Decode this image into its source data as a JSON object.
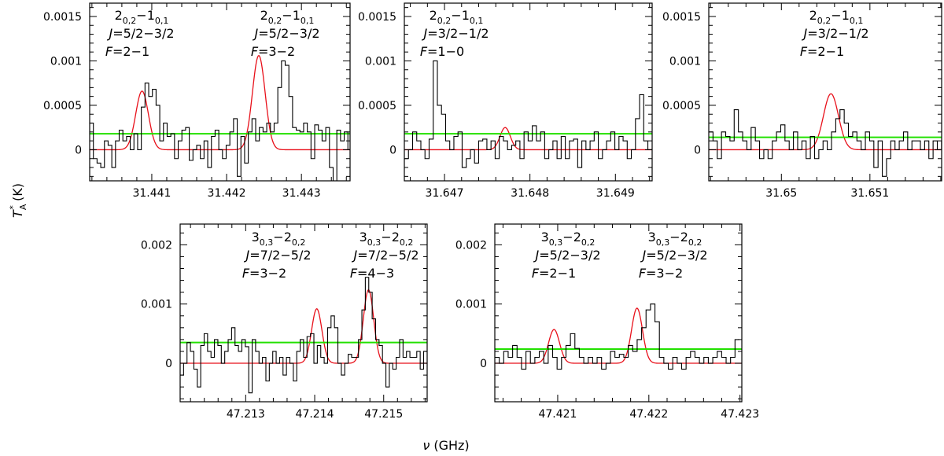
{
  "figure": {
    "xlabel_symbol": "ν",
    "xlabel_unit": " (GHz)",
    "ylabel_symbol": "T",
    "ylabel_sup": "*",
    "ylabel_sub": "A",
    "ylabel_unit": " (K)"
  },
  "colors": {
    "spectrum": "#000000",
    "fit": "#e8101a",
    "noise": "#22e000"
  },
  "chart_data": [
    {
      "type": "line",
      "xlim": [
        31.44017,
        31.44365
      ],
      "ylim": [
        -0.00035,
        0.00165
      ],
      "xticks": [
        31.441,
        31.442,
        31.443
      ],
      "xtick_labels": [
        "31.441",
        "31.442",
        "31.443"
      ],
      "yticks": [
        0,
        0.0005,
        0.001,
        0.0015
      ],
      "ytick_labels": [
        "0",
        "0.0005",
        "0.001",
        "0.0015"
      ],
      "noise_level": 0.00018,
      "fit_lines": [
        {
          "center": 31.44087,
          "amp": 0.00066,
          "sigma": 8.5e-05
        },
        {
          "center": 31.44243,
          "amp": 0.00106,
          "sigma": 8.5e-05
        }
      ],
      "spectrum": {
        "x0": 31.44017,
        "dx": 4.93e-05,
        "y": [
          0.0003,
          -0.0001,
          -0.00015,
          -0.0002,
          0.0001,
          5e-05,
          -0.0002,
          0.0001,
          0.00022,
          0.0001,
          0.00015,
          0.0,
          0.00018,
          0.0,
          0.00048,
          0.00075,
          0.0006,
          0.00068,
          0.0005,
          0.0001,
          0.0003,
          0.00015,
          0.00018,
          -0.0001,
          0.0001,
          0.00022,
          0.00025,
          -0.00012,
          0.0,
          5e-05,
          -0.0001,
          0.0001,
          -0.0002,
          0.00015,
          0.00022,
          0.0,
          -0.0001,
          5e-05,
          0.0002,
          0.00035,
          -0.0003,
          0.00015,
          -0.00015,
          0.0002,
          0.00035,
          0.0001,
          0.00025,
          0.0002,
          0.0003,
          0.0002,
          0.0003,
          0.0007,
          0.001,
          0.00095,
          0.0006,
          0.00025,
          0.00022,
          0.0002,
          0.0003,
          0.0002,
          -0.0001,
          0.00028,
          0.00022,
          0.0001,
          0.00025,
          -0.0002,
          -0.00035,
          0.00022,
          0.0001,
          0.0002,
          0.0,
          0.0001
        ]
      },
      "annotations": [
        {
          "lines": [
            [
              "2",
              "0,2",
              "−1",
              "0,1"
            ],
            "J=5/2−3/2",
            "F=2−1"
          ]
        },
        {
          "lines": [
            [
              "2",
              "0,2",
              "−1",
              "0,1"
            ],
            "J=5/2−3/2",
            "F=3−2"
          ]
        },
        "J",
        "F"
      ]
    },
    {
      "type": "line",
      "xlim": [
        31.64653,
        31.64943
      ],
      "ylim": [
        -0.00035,
        0.00165
      ],
      "xticks": [
        31.647,
        31.648,
        31.649
      ],
      "xtick_labels": [
        "31.647",
        "31.648",
        "31.649"
      ],
      "yticks": [
        0,
        0.0005,
        0.001,
        0.0015
      ],
      "ytick_labels": [
        "0",
        "0.0005",
        "0.001",
        "0.0015"
      ],
      "noise_level": 0.00018,
      "fit_lines": [
        {
          "center": 31.64771,
          "amp": 0.00025,
          "sigma": 6e-05
        }
      ],
      "spectrum": {
        "x0": 31.64653,
        "dx": 4.83e-05,
        "y": [
          -0.0001,
          0.0,
          0.0002,
          0.0001,
          0.0,
          -0.0001,
          0.00012,
          0.001,
          0.0005,
          0.0004,
          0.0001,
          0.0,
          0.00015,
          0.0002,
          -0.0002,
          -0.0001,
          0.0,
          -0.00015,
          0.0001,
          0.00012,
          0.0,
          0.0001,
          -0.0001,
          0.00015,
          0.0001,
          0.0,
          5e-05,
          0.0001,
          -0.0001,
          0.0002,
          0.0001,
          0.00027,
          0.0001,
          0.0002,
          -0.0001,
          0.0,
          0.0001,
          -0.0001,
          0.00015,
          -0.0001,
          0.0001,
          0.00012,
          -0.0002,
          0.0001,
          0.0,
          0.0001,
          0.0002,
          -0.0001,
          0.0,
          0.0001,
          0.0002,
          0.0,
          0.00015,
          0.0001,
          -0.0001,
          0.0,
          0.00035,
          0.00062,
          0.0001,
          0.0
        ]
      },
      "annotations": [
        {
          "lines": [
            [
              "2",
              "0,2",
              "−1",
              "0,1"
            ],
            "J=3/2−1/2",
            "F=1−0"
          ]
        },
        "J",
        "F"
      ]
    },
    {
      "type": "line",
      "xlim": [
        31.64918,
        31.65181
      ],
      "ylim": [
        -0.00035,
        0.00165
      ],
      "xticks": [
        31.65,
        31.651
      ],
      "xtick_labels": [
        "31.65",
        "31.651"
      ],
      "yticks": [
        0,
        0.0005,
        0.001,
        0.0015
      ],
      "ytick_labels": [
        "0",
        "0.0005",
        "0.001",
        "0.0015"
      ],
      "noise_level": 0.00014,
      "fit_lines": [
        {
          "center": 31.65056,
          "amp": 0.00063,
          "sigma": 8.5e-05
        }
      ],
      "spectrum": {
        "x0": 31.64918,
        "dx": 4.78e-05,
        "y": [
          0.0002,
          0.0001,
          -0.0001,
          0.0002,
          0.00015,
          0.0001,
          0.00045,
          0.0002,
          0.0001,
          0.0,
          0.00025,
          0.0001,
          -0.0001,
          0.0,
          -0.0001,
          0.0001,
          0.0002,
          0.00028,
          0.0001,
          0.0,
          0.0002,
          0.0,
          0.0001,
          -0.0001,
          0.00015,
          -0.0001,
          0.0,
          0.0001,
          0.0,
          0.0002,
          0.00035,
          0.00045,
          0.0003,
          0.00015,
          0.0002,
          0.0001,
          0.0,
          0.0002,
          0.0001,
          -0.0002,
          0.0001,
          -0.0003,
          -0.0001,
          0.0001,
          0.0,
          0.0001,
          0.0002,
          0.0,
          0.0001,
          0.0001,
          0.0,
          0.0001,
          -0.0001,
          0.0001,
          0.0,
          0.0001
        ]
      },
      "annotations": [
        {
          "lines": [
            [
              "2",
              "0,2",
              "−1",
              "0,1"
            ],
            "J=3/2−1/2",
            "F=2−1"
          ]
        },
        "J",
        "F"
      ]
    },
    {
      "type": "line",
      "xlim": [
        47.21205,
        47.21563
      ],
      "ylim": [
        -0.00065,
        0.00235
      ],
      "xticks": [
        47.213,
        47.214,
        47.215
      ],
      "xtick_labels": [
        "47.213",
        "47.214",
        "47.215"
      ],
      "yticks": [
        0,
        0.001,
        0.002
      ],
      "ytick_labels": [
        "0",
        "0.001",
        "0.002"
      ],
      "noise_level": 0.00035,
      "fit_lines": [
        {
          "center": 47.21403,
          "amp": 0.00092,
          "sigma": 7.5e-05
        },
        {
          "center": 47.21478,
          "amp": 0.00124,
          "sigma": 7.5e-05
        }
      ],
      "spectrum": {
        "x0": 47.21205,
        "dx": 4.97e-05,
        "y": [
          -0.0002,
          0.0,
          0.00035,
          0.0002,
          -0.0001,
          -0.0004,
          0.0003,
          0.0005,
          0.0002,
          0.0001,
          0.0004,
          0.0003,
          0.0,
          0.0002,
          0.0004,
          0.0006,
          0.0003,
          0.0002,
          0.0004,
          0.00028,
          -0.0005,
          0.0004,
          0.0002,
          0.0,
          0.0001,
          -0.0003,
          0.0,
          0.0002,
          0.0,
          0.0001,
          -0.0002,
          0.0001,
          0.0,
          -0.0003,
          0.0002,
          0.0004,
          0.0001,
          0.00045,
          0.0005,
          0.0,
          0.0003,
          0.0001,
          0.0,
          0.0006,
          0.0008,
          0.0006,
          0.0,
          -0.0002,
          0.0,
          0.00015,
          0.0001,
          0.0001,
          0.0004,
          0.0009,
          0.00145,
          0.0012,
          0.00075,
          0.0004,
          0.0003,
          0.0,
          -0.0004,
          0.0,
          -0.0001,
          0.0001,
          0.0004,
          0.0001,
          0.0002,
          0.0001,
          0.0001,
          0.0002,
          -0.0001,
          0.0002
        ]
      },
      "annotations": [
        {
          "lines": [
            [
              "3",
              "0,3",
              "−2",
              "0,2"
            ],
            "J=7/2−5/2",
            "F=3−2"
          ]
        },
        {
          "lines": [
            [
              "3",
              "0,3",
              "−2",
              "0,2"
            ],
            "J=7/2−5/2",
            "F=4−3"
          ]
        },
        "J",
        "F"
      ]
    },
    {
      "type": "line",
      "xlim": [
        47.42031,
        47.42302
      ],
      "ylim": [
        -0.00065,
        0.00235
      ],
      "xticks": [
        47.421,
        47.422,
        47.423
      ],
      "xtick_labels": [
        "47.421",
        "47.422",
        "47.423"
      ],
      "yticks": [
        0,
        0.001,
        0.002
      ],
      "ytick_labels": [
        "0",
        "0.001",
        "0.002"
      ],
      "noise_level": 0.00024,
      "fit_lines": [
        {
          "center": 47.42096,
          "amp": 0.00057,
          "sigma": 6e-05
        },
        {
          "center": 47.42187,
          "amp": 0.00093,
          "sigma": 6e-05
        }
      ],
      "spectrum": {
        "x0": 47.42031,
        "dx": 4.88e-05,
        "y": [
          0.0001,
          0.0,
          0.0002,
          0.0001,
          0.0003,
          0.0001,
          -0.0001,
          0.0002,
          0.0,
          0.0001,
          0.0002,
          0.0,
          0.0003,
          0.0001,
          -0.0001,
          0.0001,
          0.0003,
          0.0005,
          0.00025,
          0.0001,
          0.0,
          0.0001,
          0.0,
          0.0001,
          -0.0001,
          0.0,
          0.0002,
          0.0001,
          0.00015,
          0.0001,
          0.0003,
          0.0002,
          0.0004,
          0.0006,
          0.0009,
          0.001,
          0.0007,
          0.0001,
          0.0,
          -0.0001,
          0.0001,
          0.0,
          -0.0001,
          0.0001,
          0.0002,
          0.0001,
          0.0,
          0.0001,
          0.0,
          0.0001,
          0.0002,
          0.0001,
          0.0,
          0.0001,
          0.0004
        ]
      },
      "annotations": [
        {
          "lines": [
            [
              "3",
              "0,3",
              "−2",
              "0,2"
            ],
            "J=5/2−3/2",
            "F=2−1"
          ]
        },
        {
          "lines": [
            [
              "3",
              "0,3",
              "−2",
              "0,2"
            ],
            "J=5/2−3/2",
            "F=3−2"
          ]
        },
        "J",
        "F"
      ]
    }
  ]
}
